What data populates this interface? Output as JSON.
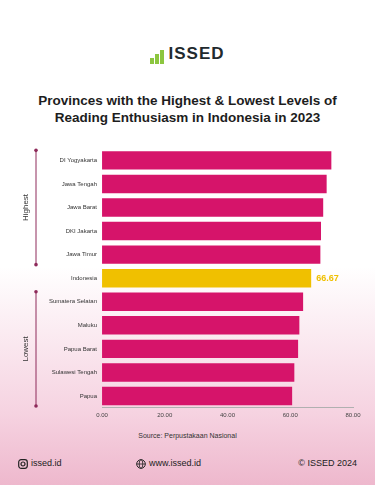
{
  "header": {
    "logo": "ISSED"
  },
  "chart_data": {
    "type": "bar",
    "orientation": "horizontal",
    "title": "Provinces with the Highest & Lowest Levels of Reading Enthusiasm in Indonesia in 2023",
    "categories": [
      "DI Yogyakarta",
      "Jawa Tengah",
      "Jawa Barat",
      "DKI Jakarta",
      "Jawa Timur",
      "Indonesia",
      "Sumatera Selatan",
      "Maluku",
      "Papua Barat",
      "Sulawesi Tengah",
      "Papua"
    ],
    "values": [
      73.1,
      71.6,
      70.5,
      69.8,
      69.6,
      66.67,
      64.1,
      62.9,
      62.5,
      61.3,
      60.6
    ],
    "value_labels": [
      null,
      null,
      null,
      null,
      null,
      "66.67",
      null,
      null,
      null,
      null,
      null
    ],
    "colors": [
      "#d6146a",
      "#d6146a",
      "#d6146a",
      "#d6146a",
      "#d6146a",
      "#f0c000",
      "#d6146a",
      "#d6146a",
      "#d6146a",
      "#d6146a",
      "#d6146a"
    ],
    "groups": [
      {
        "name": "Highest",
        "categories": [
          "DI Yogyakarta",
          "Jawa Tengah",
          "Jawa Barat",
          "DKI Jakarta",
          "Jawa Timur"
        ]
      },
      {
        "name": "Lowest",
        "categories": [
          "Sumatera Selatan",
          "Maluku",
          "Papua Barat",
          "Sulawesi Tengah",
          "Papua"
        ]
      }
    ],
    "xlim": [
      0,
      80
    ],
    "xticks": [
      {
        "value": 0,
        "label": "0.00"
      },
      {
        "value": 20,
        "label": "20.00"
      },
      {
        "value": 40,
        "label": "40.00"
      },
      {
        "value": 60,
        "label": "60.00"
      },
      {
        "value": 80,
        "label": "80.00"
      }
    ],
    "grid": false
  },
  "footer": {
    "source": "Source: Perpustakaan Nasional",
    "instagram": "issed.id",
    "website": "www.issed.id",
    "copyright": "© ISSED 2024"
  }
}
